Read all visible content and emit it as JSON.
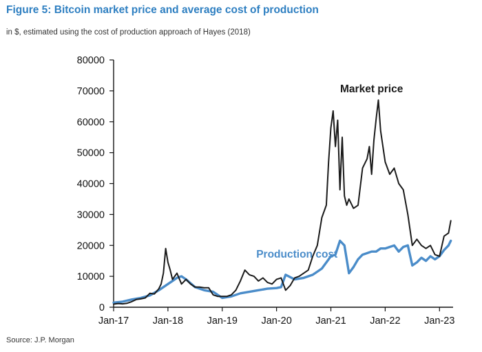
{
  "figure": {
    "title": "Figure 5: Bitcoin market price and average cost of production",
    "subtitle": "in $, estimated using the cost of production approach of Hayes (2018)",
    "source": "Source: J.P. Morgan"
  },
  "chart_data": {
    "type": "line",
    "title": "Figure 5: Bitcoin market price and average cost of production",
    "xlabel": "",
    "ylabel": "",
    "x_unit": "months since Jan-17",
    "xlim": [
      0,
      75
    ],
    "ylim": [
      0,
      80000
    ],
    "grid": false,
    "legend": "none",
    "x_ticks": [
      {
        "x": 0,
        "label": "Jan-17"
      },
      {
        "x": 12,
        "label": "Jan-18"
      },
      {
        "x": 24,
        "label": "Jan-19"
      },
      {
        "x": 36,
        "label": "Jan-20"
      },
      {
        "x": 48,
        "label": "Jan-21"
      },
      {
        "x": 60,
        "label": "Jan-22"
      },
      {
        "x": 72,
        "label": "Jan-23"
      }
    ],
    "y_ticks": [
      0,
      10000,
      20000,
      30000,
      40000,
      50000,
      60000,
      70000,
      80000
    ],
    "annotations": [
      {
        "text": "Market price",
        "series": 0,
        "x": 57,
        "y": 69500
      },
      {
        "text": "Production cost",
        "series": 1,
        "x": 40.5,
        "y": 16000
      }
    ],
    "series": [
      {
        "name": "Market price",
        "color": "#1a1a1a",
        "x": [
          0,
          1,
          2,
          3,
          4,
          5,
          6,
          7,
          8,
          9,
          10,
          10.5,
          11,
          11.5,
          12,
          12.5,
          13,
          14,
          15,
          16,
          17,
          18,
          19,
          20,
          21,
          22,
          23,
          24,
          25,
          26,
          27,
          28,
          29,
          30,
          31,
          32,
          33,
          34,
          35,
          36,
          37,
          38,
          39,
          40,
          41,
          42,
          43,
          44,
          45,
          46,
          47,
          47.5,
          48,
          48.5,
          49,
          49.5,
          50,
          50.5,
          51,
          51.5,
          52,
          53,
          54,
          55,
          56,
          56.5,
          57,
          57.5,
          58,
          58.5,
          59,
          60,
          61,
          62,
          63,
          64,
          65,
          66,
          67,
          68,
          69,
          70,
          71,
          72,
          73,
          74,
          74.5
        ],
        "y": [
          1000,
          1200,
          1100,
          1300,
          1800,
          2500,
          2700,
          3000,
          4500,
          4300,
          6000,
          7500,
          11000,
          19000,
          14500,
          12000,
          9000,
          11000,
          7500,
          9000,
          7500,
          6500,
          6500,
          6300,
          6300,
          4000,
          3500,
          3500,
          3500,
          4000,
          5500,
          8500,
          12000,
          10500,
          10000,
          8500,
          9500,
          8000,
          7500,
          9000,
          9500,
          5500,
          7000,
          9500,
          10000,
          11000,
          12000,
          16500,
          20000,
          29000,
          33000,
          47000,
          58000,
          63500,
          52000,
          60500,
          38000,
          55000,
          36000,
          33000,
          35000,
          32000,
          33000,
          45000,
          48000,
          52000,
          43000,
          54000,
          61000,
          67000,
          57000,
          47000,
          43000,
          45000,
          40000,
          38000,
          30000,
          20000,
          22000,
          20000,
          19000,
          20000,
          17000,
          16500,
          23000,
          24000,
          28000
        ]
      },
      {
        "name": "Production cost",
        "color": "#4a8cc9",
        "x": [
          0,
          2,
          4,
          6,
          8,
          10,
          12,
          14,
          15,
          16,
          18,
          20,
          22,
          24,
          26,
          28,
          30,
          32,
          34,
          36,
          37,
          38,
          40,
          42,
          44,
          46,
          48,
          49,
          50,
          51,
          52,
          53,
          54,
          55,
          56,
          57,
          58,
          59,
          60,
          61,
          62,
          63,
          64,
          65,
          66,
          67,
          68,
          69,
          70,
          71,
          72,
          73,
          74,
          74.5
        ],
        "y": [
          1500,
          1800,
          2500,
          3000,
          3800,
          5500,
          7500,
          9500,
          10000,
          9000,
          6500,
          5500,
          5000,
          3000,
          3500,
          4500,
          5000,
          5500,
          6000,
          6200,
          6500,
          10500,
          9000,
          9500,
          10500,
          12500,
          16500,
          17000,
          21500,
          20000,
          11000,
          13000,
          15500,
          17000,
          17500,
          18000,
          18000,
          19000,
          19000,
          19500,
          20000,
          18000,
          19500,
          20000,
          13500,
          14500,
          16000,
          15000,
          16500,
          15500,
          16500,
          18500,
          20000,
          21500
        ]
      }
    ]
  }
}
